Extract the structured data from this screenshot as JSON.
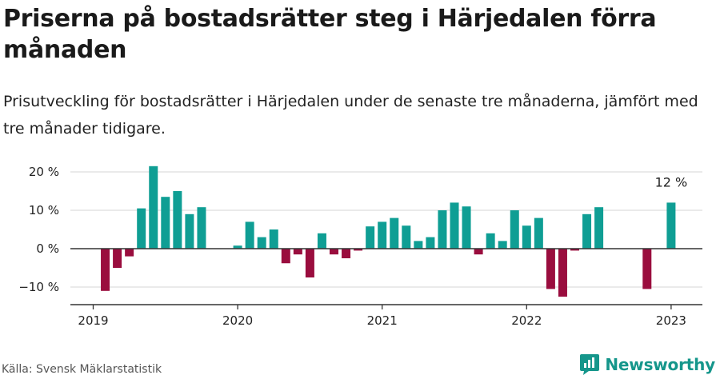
{
  "title": "Priserna på bostadsrätter steg i Härjedalen förra månaden",
  "subtitle": "Prisutveckling för bostadsrätter i Härjedalen under de senaste tre månaderna, jämfört med tre månader tidigare.",
  "source": "Källa: Svensk Mäklarstatistik",
  "brand": {
    "name": "Newsworthy",
    "logo_icon": "newsworthy-logo-icon"
  },
  "colors": {
    "positive": "#0f9e94",
    "negative": "#9a0d3e",
    "grid": "#dddddd",
    "axis": "#333333",
    "brand": "#15968b"
  },
  "chart_data": {
    "type": "bar",
    "ylim": [
      -15,
      22
    ],
    "y_ticks": [
      {
        "value": -10,
        "label": "−10 %"
      },
      {
        "value": 0,
        "label": "0 %"
      },
      {
        "value": 10,
        "label": "10 %"
      },
      {
        "value": 20,
        "label": "20 %"
      }
    ],
    "x_ticks": [
      {
        "date": "2019-01",
        "label": "2019"
      },
      {
        "date": "2020-01",
        "label": "2020"
      },
      {
        "date": "2021-01",
        "label": "2021"
      },
      {
        "date": "2022-01",
        "label": "2022"
      },
      {
        "date": "2023-01",
        "label": "2023"
      }
    ],
    "grid": true,
    "annotations": [
      {
        "date": "2023-01",
        "text": "12 %"
      }
    ],
    "series": [
      {
        "unit": "%",
        "points": [
          {
            "date": "2019-02",
            "value": -11
          },
          {
            "date": "2019-03",
            "value": -5
          },
          {
            "date": "2019-04",
            "value": -2
          },
          {
            "date": "2019-05",
            "value": 10.5
          },
          {
            "date": "2019-06",
            "value": 21.5
          },
          {
            "date": "2019-07",
            "value": 13.5
          },
          {
            "date": "2019-08",
            "value": 15
          },
          {
            "date": "2019-09",
            "value": 9
          },
          {
            "date": "2019-10",
            "value": 10.8
          },
          {
            "date": "2020-01",
            "value": 0.8
          },
          {
            "date": "2020-02",
            "value": 7
          },
          {
            "date": "2020-03",
            "value": 3
          },
          {
            "date": "2020-04",
            "value": 5
          },
          {
            "date": "2020-05",
            "value": -3.8
          },
          {
            "date": "2020-06",
            "value": -1.5
          },
          {
            "date": "2020-07",
            "value": -7.5
          },
          {
            "date": "2020-08",
            "value": 4
          },
          {
            "date": "2020-09",
            "value": -1.5
          },
          {
            "date": "2020-10",
            "value": -2.5
          },
          {
            "date": "2020-11",
            "value": -0.5
          },
          {
            "date": "2020-12",
            "value": 5.8
          },
          {
            "date": "2021-01",
            "value": 7
          },
          {
            "date": "2021-02",
            "value": 8
          },
          {
            "date": "2021-03",
            "value": 6
          },
          {
            "date": "2021-04",
            "value": 2
          },
          {
            "date": "2021-05",
            "value": 3
          },
          {
            "date": "2021-06",
            "value": 10
          },
          {
            "date": "2021-07",
            "value": 12
          },
          {
            "date": "2021-08",
            "value": 11
          },
          {
            "date": "2021-09",
            "value": -1.5
          },
          {
            "date": "2021-10",
            "value": 4
          },
          {
            "date": "2021-11",
            "value": 2
          },
          {
            "date": "2021-12",
            "value": 10
          },
          {
            "date": "2022-01",
            "value": 6
          },
          {
            "date": "2022-02",
            "value": 8
          },
          {
            "date": "2022-03",
            "value": -10.5
          },
          {
            "date": "2022-04",
            "value": -12.5
          },
          {
            "date": "2022-05",
            "value": -0.5
          },
          {
            "date": "2022-06",
            "value": 9
          },
          {
            "date": "2022-07",
            "value": 10.8
          },
          {
            "date": "2022-11",
            "value": -10.5
          },
          {
            "date": "2023-01",
            "value": 12
          }
        ]
      }
    ]
  }
}
